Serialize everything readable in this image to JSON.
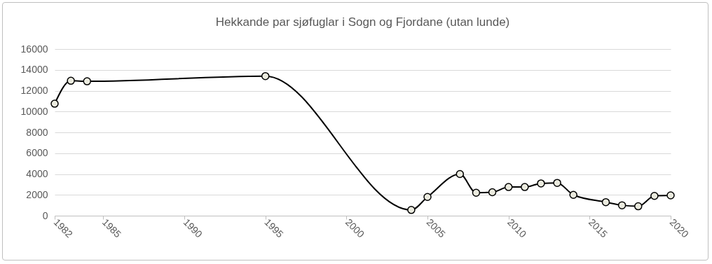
{
  "chart_data": {
    "type": "line",
    "title": "Hekkande par sjøfuglar i Sogn og Fjordane (utan lunde)",
    "x": [
      1982,
      1983,
      1984,
      1995,
      2004,
      2005,
      2007,
      2008,
      2009,
      2010,
      2011,
      2012,
      2013,
      2014,
      2016,
      2017,
      2018,
      2019,
      2020
    ],
    "series": [
      {
        "color": "#000000",
        "values": [
          10750,
          12950,
          12900,
          13400,
          550,
          1800,
          4000,
          2200,
          2250,
          2750,
          2750,
          3100,
          3150,
          2000,
          1300,
          1000,
          900,
          1900,
          1950
        ]
      }
    ],
    "xlim": [
      1982,
      2020
    ],
    "xticks": [
      1982,
      1985,
      1990,
      1995,
      2000,
      2005,
      2010,
      2015,
      2020
    ],
    "ylim": [
      0,
      16000
    ],
    "yticks": [
      0,
      2000,
      4000,
      6000,
      8000,
      10000,
      12000,
      14000,
      16000
    ],
    "grid": "y",
    "marker": "circle",
    "line_style": "solid"
  }
}
